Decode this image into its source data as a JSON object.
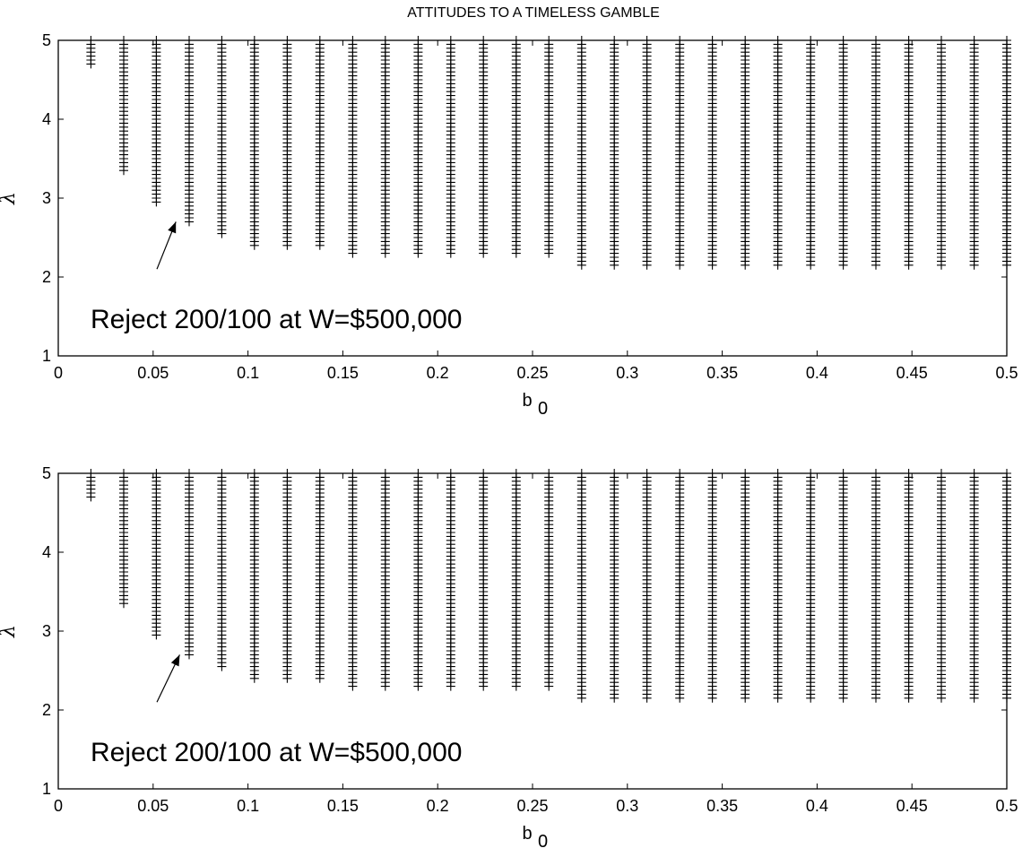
{
  "figure": {
    "title": "ATTITUDES TO A TIMELESS GAMBLE"
  },
  "chart_data": [
    {
      "type": "scatter",
      "marker": "+",
      "title": "ATTITUDES TO A TIMELESS GAMBLE",
      "xlabel": "b",
      "xlabel_sub": "0",
      "ylabel": "λ",
      "xlim": [
        0,
        0.5
      ],
      "ylim": [
        1,
        5
      ],
      "xticks": [
        "0",
        "0.05",
        "0.1",
        "0.15",
        "0.2",
        "0.25",
        "0.3",
        "0.35",
        "0.4",
        "0.45",
        "0.5"
      ],
      "yticks": [
        "1",
        "2",
        "3",
        "4",
        "5"
      ],
      "grid": false,
      "columns": {
        "b0": [
          0.0172,
          0.0345,
          0.0517,
          0.069,
          0.0862,
          0.1034,
          0.1207,
          0.1379,
          0.1552,
          0.1724,
          0.1897,
          0.2069,
          0.2241,
          0.2414,
          0.2586,
          0.2759,
          0.2931,
          0.3103,
          0.3276,
          0.3448,
          0.3621,
          0.3793,
          0.3966,
          0.4138,
          0.431,
          0.4483,
          0.4655,
          0.4828,
          0.5
        ],
        "lambda_min": [
          4.7,
          3.35,
          2.95,
          2.7,
          2.55,
          2.4,
          2.4,
          2.4,
          2.3,
          2.3,
          2.3,
          2.3,
          2.3,
          2.3,
          2.3,
          2.15,
          2.15,
          2.15,
          2.15,
          2.15,
          2.15,
          2.15,
          2.15,
          2.15,
          2.15,
          2.15,
          2.15,
          2.15,
          2.15
        ],
        "lambda_max": 5.0,
        "lambda_step": 0.05
      },
      "annotation": {
        "text": "Reject 200/100 at W=$500,000",
        "arrow_to": [
          0.062,
          2.7
        ],
        "arrow_from": [
          0.052,
          2.1
        ]
      }
    },
    {
      "type": "scatter",
      "marker": "+",
      "xlabel": "b",
      "xlabel_sub": "0",
      "ylabel": "λ",
      "xlim": [
        0,
        0.5
      ],
      "ylim": [
        1,
        5
      ],
      "xticks": [
        "0",
        "0.05",
        "0.1",
        "0.15",
        "0.2",
        "0.25",
        "0.3",
        "0.35",
        "0.4",
        "0.45",
        "0.5"
      ],
      "yticks": [
        "1",
        "2",
        "3",
        "4",
        "5"
      ],
      "grid": false,
      "columns": {
        "b0": [
          0.0172,
          0.0345,
          0.0517,
          0.069,
          0.0862,
          0.1034,
          0.1207,
          0.1379,
          0.1552,
          0.1724,
          0.1897,
          0.2069,
          0.2241,
          0.2414,
          0.2586,
          0.2759,
          0.2931,
          0.3103,
          0.3276,
          0.3448,
          0.3621,
          0.3793,
          0.3966,
          0.4138,
          0.431,
          0.4483,
          0.4655,
          0.4828,
          0.5
        ],
        "lambda_min": [
          4.7,
          3.35,
          2.95,
          2.7,
          2.55,
          2.4,
          2.4,
          2.4,
          2.3,
          2.3,
          2.3,
          2.3,
          2.3,
          2.3,
          2.3,
          2.15,
          2.15,
          2.15,
          2.15,
          2.15,
          2.15,
          2.15,
          2.15,
          2.15,
          2.15,
          2.15,
          2.15,
          2.15,
          2.15
        ],
        "lambda_max": 5.0,
        "lambda_step": 0.05
      },
      "annotation": {
        "text": "Reject 200/100 at W=$500,000",
        "arrow_to": [
          0.064,
          2.7
        ],
        "arrow_from": [
          0.052,
          2.1
        ]
      }
    }
  ]
}
